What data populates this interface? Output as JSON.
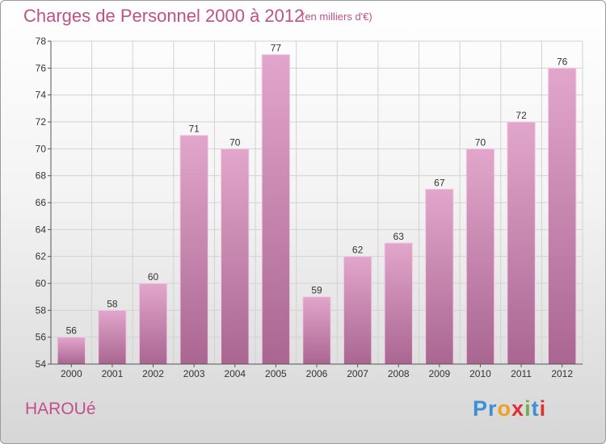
{
  "header": {
    "title": "Charges de Personnel 2000 à 2012",
    "subtitle": "(en milliers d'€)"
  },
  "footer": {
    "commune": "HAROUé",
    "brand": [
      "P",
      "r",
      "o",
      "x",
      "i",
      "t",
      "i"
    ],
    "brand_colors": [
      "#3d8fd6",
      "#3d8fd6",
      "#f0a020",
      "#e03030",
      "#6ab04c",
      "#3d8fd6",
      "#e03030"
    ]
  },
  "colors": {
    "bar_top": "#e2a6cc",
    "bar_bottom": "#a96691",
    "bar_edge": "#f0cfe2",
    "grid": "#d2d2d2",
    "axis": "#555555"
  },
  "chart_data": {
    "type": "bar",
    "title": "Charges de Personnel 2000 à 2012",
    "subtitle": "(en milliers d'€)",
    "categories": [
      "2000",
      "2001",
      "2002",
      "2003",
      "2004",
      "2005",
      "2006",
      "2007",
      "2008",
      "2009",
      "2010",
      "2011",
      "2012"
    ],
    "values": [
      56,
      58,
      60,
      71,
      70,
      77,
      59,
      62,
      63,
      67,
      70,
      72,
      76
    ],
    "xlabel": "",
    "ylabel": "",
    "ylim": [
      54,
      78
    ],
    "yticks": [
      54,
      56,
      58,
      60,
      62,
      64,
      66,
      68,
      70,
      72,
      74,
      76,
      78
    ],
    "grid": true,
    "legend": "none"
  }
}
